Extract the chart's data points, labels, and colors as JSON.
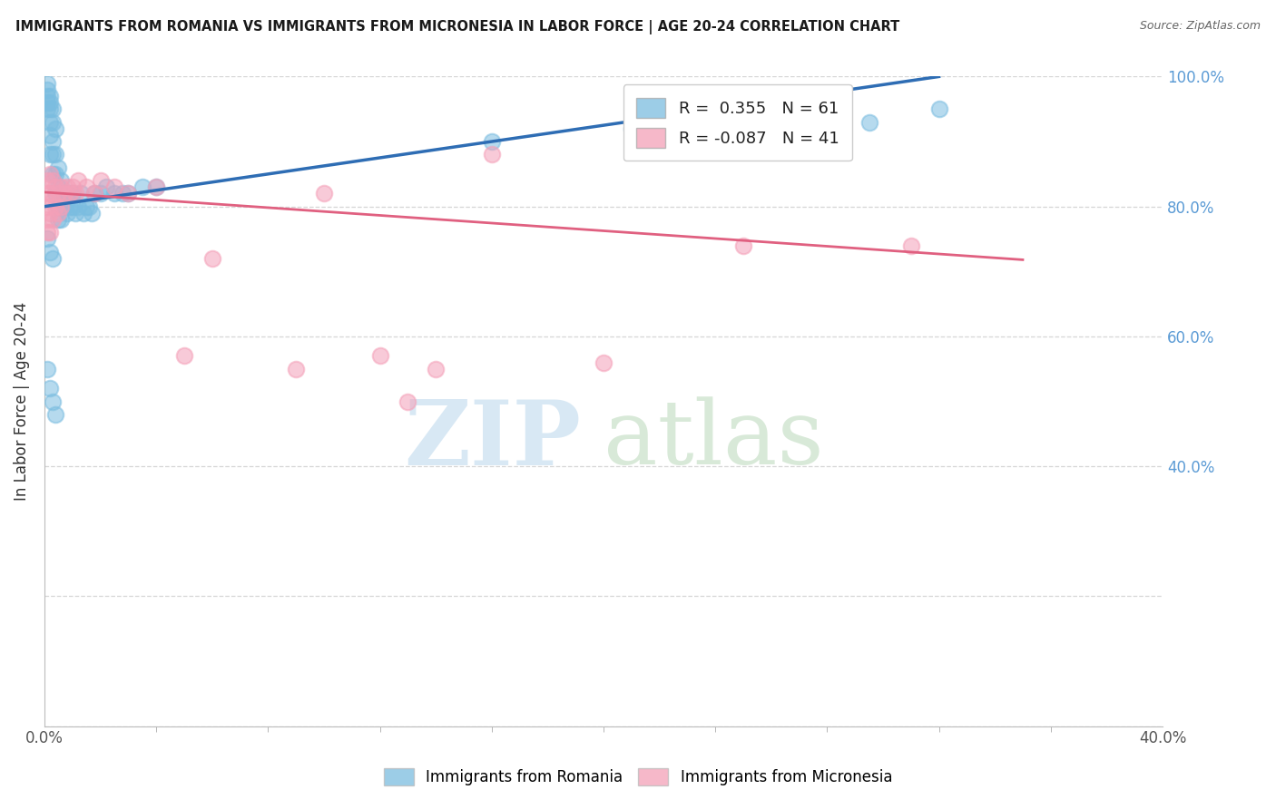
{
  "title": "IMMIGRANTS FROM ROMANIA VS IMMIGRANTS FROM MICRONESIA IN LABOR FORCE | AGE 20-24 CORRELATION CHART",
  "source": "Source: ZipAtlas.com",
  "ylabel": "In Labor Force | Age 20-24",
  "xmin": 0.0,
  "xmax": 0.4,
  "ymin": 0.0,
  "ymax": 1.0,
  "romania_color": "#7bbde0",
  "micronesia_color": "#f4a0b8",
  "romania_line_color": "#2e6db4",
  "micronesia_line_color": "#e06080",
  "romania_R": 0.355,
  "romania_N": 61,
  "micronesia_R": -0.087,
  "micronesia_N": 41,
  "right_ytick_color": "#5b9bd5",
  "grid_color": "#cccccc",
  "romania_x": [
    0.001,
    0.001,
    0.001,
    0.001,
    0.001,
    0.002,
    0.002,
    0.002,
    0.002,
    0.002,
    0.002,
    0.003,
    0.003,
    0.003,
    0.003,
    0.003,
    0.004,
    0.004,
    0.004,
    0.004,
    0.005,
    0.005,
    0.005,
    0.005,
    0.006,
    0.006,
    0.006,
    0.007,
    0.007,
    0.008,
    0.008,
    0.009,
    0.009,
    0.01,
    0.01,
    0.011,
    0.012,
    0.013,
    0.014,
    0.015,
    0.016,
    0.017,
    0.018,
    0.02,
    0.022,
    0.025,
    0.028,
    0.03,
    0.035,
    0.04,
    0.001,
    0.002,
    0.003,
    0.001,
    0.002,
    0.003,
    0.004,
    0.16,
    0.21,
    0.295,
    0.32
  ],
  "romania_y": [
    0.99,
    0.98,
    0.97,
    0.96,
    0.95,
    0.97,
    0.96,
    0.95,
    0.93,
    0.91,
    0.88,
    0.95,
    0.93,
    0.9,
    0.88,
    0.85,
    0.92,
    0.88,
    0.85,
    0.82,
    0.86,
    0.83,
    0.8,
    0.78,
    0.84,
    0.81,
    0.78,
    0.82,
    0.8,
    0.81,
    0.79,
    0.82,
    0.8,
    0.8,
    0.82,
    0.79,
    0.8,
    0.82,
    0.79,
    0.8,
    0.8,
    0.79,
    0.82,
    0.82,
    0.83,
    0.82,
    0.82,
    0.82,
    0.83,
    0.83,
    0.75,
    0.73,
    0.72,
    0.55,
    0.52,
    0.5,
    0.48,
    0.9,
    0.92,
    0.93,
    0.95
  ],
  "micronesia_x": [
    0.001,
    0.001,
    0.001,
    0.001,
    0.001,
    0.002,
    0.002,
    0.002,
    0.002,
    0.003,
    0.003,
    0.003,
    0.004,
    0.004,
    0.005,
    0.005,
    0.006,
    0.006,
    0.007,
    0.008,
    0.009,
    0.01,
    0.011,
    0.012,
    0.015,
    0.018,
    0.02,
    0.025,
    0.03,
    0.04,
    0.05,
    0.06,
    0.09,
    0.1,
    0.12,
    0.13,
    0.14,
    0.16,
    0.2,
    0.25,
    0.31
  ],
  "micronesia_y": [
    0.84,
    0.82,
    0.8,
    0.78,
    0.76,
    0.85,
    0.82,
    0.79,
    0.76,
    0.84,
    0.81,
    0.78,
    0.83,
    0.8,
    0.82,
    0.79,
    0.83,
    0.8,
    0.82,
    0.83,
    0.82,
    0.83,
    0.82,
    0.84,
    0.83,
    0.82,
    0.84,
    0.83,
    0.82,
    0.83,
    0.57,
    0.72,
    0.55,
    0.82,
    0.57,
    0.5,
    0.55,
    0.88,
    0.56,
    0.74,
    0.74
  ],
  "blue_line_x0": 0.0,
  "blue_line_y0": 0.8,
  "blue_line_x1": 0.32,
  "blue_line_y1": 1.0,
  "pink_line_x0": 0.0,
  "pink_line_y0": 0.822,
  "pink_line_x1": 0.35,
  "pink_line_y1": 0.718
}
